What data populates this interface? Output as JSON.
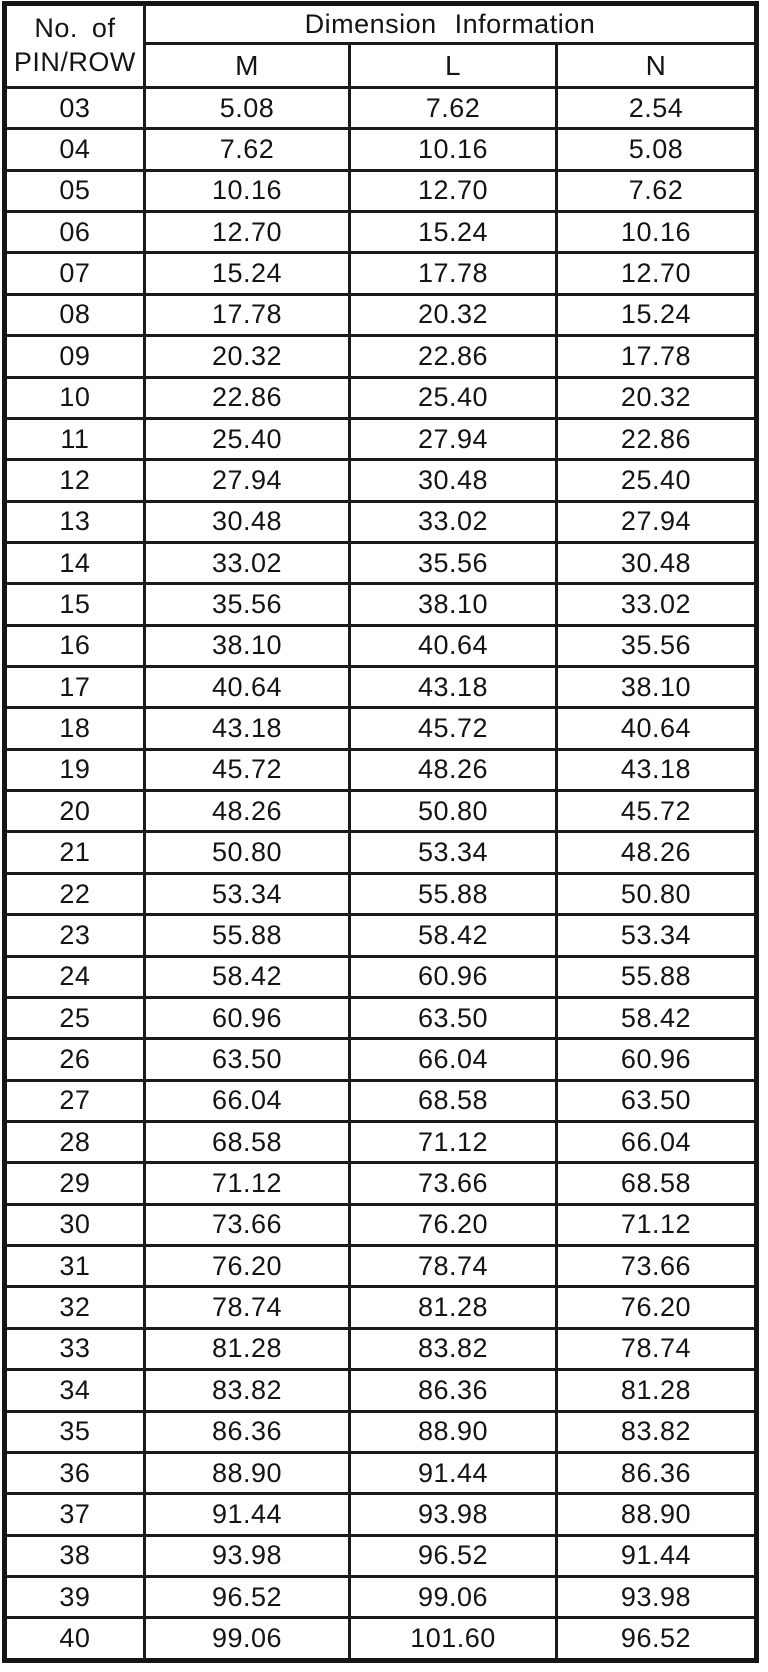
{
  "table": {
    "header": {
      "pin_col_line1": "No. of",
      "pin_col_line2": "PIN/ROW",
      "group_title": "Dimension Information",
      "columns": [
        "M",
        "L",
        "N"
      ]
    },
    "rows": [
      {
        "pin": "03",
        "m": "5.08",
        "l": "7.62",
        "n": "2.54"
      },
      {
        "pin": "04",
        "m": "7.62",
        "l": "10.16",
        "n": "5.08"
      },
      {
        "pin": "05",
        "m": "10.16",
        "l": "12.70",
        "n": "7.62"
      },
      {
        "pin": "06",
        "m": "12.70",
        "l": "15.24",
        "n": "10.16"
      },
      {
        "pin": "07",
        "m": "15.24",
        "l": "17.78",
        "n": "12.70"
      },
      {
        "pin": "08",
        "m": "17.78",
        "l": "20.32",
        "n": "15.24"
      },
      {
        "pin": "09",
        "m": "20.32",
        "l": "22.86",
        "n": "17.78"
      },
      {
        "pin": "10",
        "m": "22.86",
        "l": "25.40",
        "n": "20.32"
      },
      {
        "pin": "11",
        "m": "25.40",
        "l": "27.94",
        "n": "22.86"
      },
      {
        "pin": "12",
        "m": "27.94",
        "l": "30.48",
        "n": "25.40"
      },
      {
        "pin": "13",
        "m": "30.48",
        "l": "33.02",
        "n": "27.94"
      },
      {
        "pin": "14",
        "m": "33.02",
        "l": "35.56",
        "n": "30.48"
      },
      {
        "pin": "15",
        "m": "35.56",
        "l": "38.10",
        "n": "33.02"
      },
      {
        "pin": "16",
        "m": "38.10",
        "l": "40.64",
        "n": "35.56"
      },
      {
        "pin": "17",
        "m": "40.64",
        "l": "43.18",
        "n": "38.10"
      },
      {
        "pin": "18",
        "m": "43.18",
        "l": "45.72",
        "n": "40.64"
      },
      {
        "pin": "19",
        "m": "45.72",
        "l": "48.26",
        "n": "43.18"
      },
      {
        "pin": "20",
        "m": "48.26",
        "l": "50.80",
        "n": "45.72"
      },
      {
        "pin": "21",
        "m": "50.80",
        "l": "53.34",
        "n": "48.26"
      },
      {
        "pin": "22",
        "m": "53.34",
        "l": "55.88",
        "n": "50.80"
      },
      {
        "pin": "23",
        "m": "55.88",
        "l": "58.42",
        "n": "53.34"
      },
      {
        "pin": "24",
        "m": "58.42",
        "l": "60.96",
        "n": "55.88"
      },
      {
        "pin": "25",
        "m": "60.96",
        "l": "63.50",
        "n": "58.42"
      },
      {
        "pin": "26",
        "m": "63.50",
        "l": "66.04",
        "n": "60.96"
      },
      {
        "pin": "27",
        "m": "66.04",
        "l": "68.58",
        "n": "63.50"
      },
      {
        "pin": "28",
        "m": "68.58",
        "l": "71.12",
        "n": "66.04"
      },
      {
        "pin": "29",
        "m": "71.12",
        "l": "73.66",
        "n": "68.58"
      },
      {
        "pin": "30",
        "m": "73.66",
        "l": "76.20",
        "n": "71.12"
      },
      {
        "pin": "31",
        "m": "76.20",
        "l": "78.74",
        "n": "73.66"
      },
      {
        "pin": "32",
        "m": "78.74",
        "l": "81.28",
        "n": "76.20"
      },
      {
        "pin": "33",
        "m": "81.28",
        "l": "83.82",
        "n": "78.74"
      },
      {
        "pin": "34",
        "m": "83.82",
        "l": "86.36",
        "n": "81.28"
      },
      {
        "pin": "35",
        "m": "86.36",
        "l": "88.90",
        "n": "83.82"
      },
      {
        "pin": "36",
        "m": "88.90",
        "l": "91.44",
        "n": "86.36"
      },
      {
        "pin": "37",
        "m": "91.44",
        "l": "93.98",
        "n": "88.90"
      },
      {
        "pin": "38",
        "m": "93.98",
        "l": "96.52",
        "n": "91.44"
      },
      {
        "pin": "39",
        "m": "96.52",
        "l": "99.06",
        "n": "93.98"
      },
      {
        "pin": "40",
        "m": "99.06",
        "l": "101.60",
        "n": "96.52"
      }
    ]
  }
}
